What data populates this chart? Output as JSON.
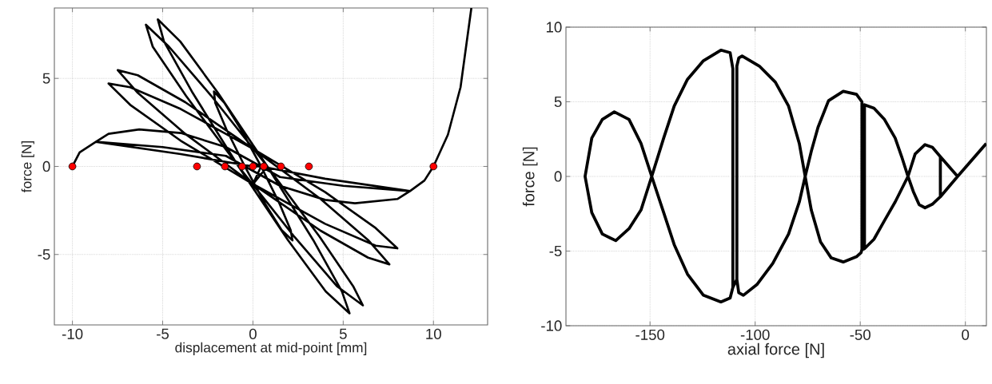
{
  "chart_data": [
    {
      "type": "line",
      "xlabel": "displacement at mid-point [mm]",
      "ylabel": "force [N]",
      "xlim": [
        -11,
        13
      ],
      "ylim": [
        -9,
        9
      ],
      "xticks": [
        -10,
        -5,
        0,
        5,
        10
      ],
      "yticks": [
        -5,
        0,
        5
      ],
      "grid": true,
      "series": [
        {
          "color": "#000000",
          "x": [
            -10,
            -9.6,
            -8.7,
            -8.0,
            -6.3,
            -4.0,
            -1.5,
            1.5,
            5,
            8.7,
            8.0,
            5.65,
            4.0,
            1.5,
            -1.5,
            -5,
            -8.7,
            -4,
            0,
            0.8,
            3.34,
            4.93,
            5.35,
            4.03,
            1.94,
            -0.8,
            -3.34,
            -4.93,
            -5.27,
            -4.03,
            -1.94,
            0.8,
            3.7,
            5.55,
            6.09,
            4.65,
            2.3,
            -0.8,
            -3.7,
            -5.55,
            -5.93,
            -4.65,
            -2.3,
            0.8,
            0,
            3.75,
            6.38,
            7.56,
            6.38,
            3.75,
            0,
            -3.75,
            -6.38,
            -7.49,
            -6.38,
            -3.75,
            0,
            4.0,
            6.8,
            8.0,
            6.8,
            4.0,
            0,
            -4.0,
            -6.8,
            -8.0,
            -6.8,
            -4.0,
            0,
            0.45,
            1.48,
            2.09,
            2.19,
            1.59,
            0.68,
            -0.45,
            -1.48,
            -2.09,
            -2.16,
            -1.59,
            -0.68,
            0.45,
            4,
            8.7,
            9.5,
            10,
            10.8,
            11.5,
            12.1
          ],
          "values": [
            0,
            0.8,
            1.4,
            1.85,
            2.1,
            1.9,
            1.1,
            -0.6,
            -1.1,
            -1.4,
            -1.85,
            -2.09,
            -1.9,
            -1.1,
            0.6,
            1.1,
            1.4,
            0.7,
            0,
            0,
            -4.18,
            -7.1,
            -8.34,
            -7.1,
            -4.18,
            0,
            4.18,
            7.1,
            8.35,
            7.1,
            4.18,
            0,
            -4.0,
            -6.8,
            -7.89,
            -6.8,
            -4.0,
            0,
            4.0,
            6.8,
            8.05,
            6.8,
            4.0,
            0,
            -1.0,
            -3.65,
            -5.18,
            -5.56,
            -4.18,
            -1.85,
            1.0,
            3.65,
            5.18,
            5.47,
            4.18,
            1.85,
            -1.0,
            -3.26,
            -4.5,
            -4.65,
            -3.5,
            -1.46,
            1.0,
            3.26,
            4.5,
            4.71,
            3.5,
            1.46,
            -1.0,
            0,
            -2.13,
            -3.62,
            -4.2,
            -3.62,
            -2.13,
            0,
            2.13,
            3.62,
            4.26,
            3.62,
            2.13,
            0,
            -0.7,
            -1.4,
            -0.8,
            0,
            1.8,
            4.5,
            9
          ]
        },
        {
          "type": "scatter",
          "marker": "circle",
          "color": "#ff0000",
          "x": [
            -10,
            -3.1,
            -1.55,
            -0.6,
            0,
            0.6,
            1.55,
            3.1,
            10
          ],
          "values": [
            0,
            0,
            0,
            0,
            0,
            0,
            0,
            0,
            0
          ]
        }
      ]
    },
    {
      "type": "line",
      "xlabel": "axial force [N]",
      "ylabel": "force [N]",
      "xlim": [
        -190,
        10
      ],
      "ylim": [
        -10,
        10
      ],
      "xticks": [
        -150,
        -100,
        -50,
        0
      ],
      "yticks": [
        -10,
        -5,
        0,
        5,
        10
      ],
      "grid": true,
      "series": [
        {
          "color": "#000000",
          "x": [
            9.9,
            -3.7,
            -11.9,
            -15.7,
            -19.2,
            -23.9,
            -27.3,
            -33.4,
            -38.5,
            -43.5,
            -48.0,
            -49.2,
            -49.2,
            -51.8,
            -58.1,
            -65.1,
            -70.1,
            -73.3,
            -76.2,
            -79.0,
            -84.1,
            -91.6,
            -99.2,
            -105.6,
            -107.8,
            -108.7,
            -110.6,
            -110.6,
            -111.9,
            -116.3,
            -124.6,
            -132.2,
            -138.5,
            -143.5,
            -149.2,
            -154.3,
            -160.0,
            -166.3,
            -172.7,
            -177.7,
            -180.9,
            -177.7,
            -172.7,
            -167.0,
            -160.0,
            -154.3,
            -149.2,
            -143.5,
            -138.5,
            -132.2,
            -124.6,
            -116.3,
            -111.9,
            -110.6,
            -108.7,
            -108.7,
            -107.8,
            -106.2,
            -98.0,
            -90.4,
            -84.1,
            -79.0,
            -76.2,
            -73.3,
            -68.9,
            -63.8,
            -58.1,
            -51.8,
            -49.6,
            -49.2,
            -48.0,
            -48.0,
            -43.5,
            -38.5,
            -33.4,
            -30.3,
            -27.3,
            -24.8,
            -22.0,
            -19.2,
            -15.7,
            -11.9,
            -11.9,
            -11.9,
            -3.7
          ],
          "values": [
            2.2,
            0,
            1.32,
            1.95,
            2.13,
            1.5,
            0,
            -1.71,
            -2.96,
            -4.21,
            -4.84,
            -4.9,
            5.0,
            5.5,
            5.7,
            5.07,
            3.29,
            1.68,
            0,
            -1.71,
            -3.86,
            -5.82,
            -7.25,
            -7.96,
            -7.79,
            -6.9,
            -7.43,
            7.21,
            8.29,
            8.46,
            7.75,
            6.5,
            4.71,
            2.57,
            0,
            -2.25,
            -3.5,
            -4.3,
            -3.86,
            -2.43,
            0,
            2.57,
            3.82,
            4.32,
            3.82,
            2.21,
            0,
            -2.43,
            -4.57,
            -6.54,
            -7.96,
            -8.41,
            -8.14,
            -7.43,
            -6.9,
            7.39,
            7.93,
            8.07,
            7.39,
            6.32,
            4.71,
            2.21,
            0,
            -2.25,
            -4.39,
            -5.46,
            -5.73,
            -5.38,
            -5.1,
            -4.9,
            -4.84,
            4.8,
            4.57,
            3.82,
            2.57,
            1.32,
            0,
            -1.0,
            -1.89,
            -2.1,
            -1.86,
            -1.36,
            1.32,
            -1.36,
            0
          ]
        }
      ]
    }
  ]
}
